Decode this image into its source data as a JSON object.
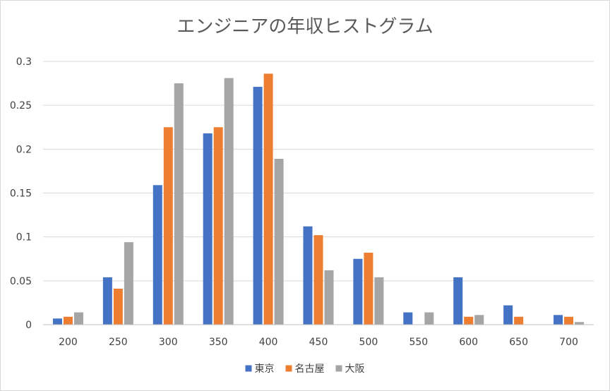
{
  "chart_data": {
    "type": "bar",
    "title": "エンジニアの年収ヒストグラム",
    "xlabel": "",
    "ylabel": "",
    "categories": [
      "200",
      "250",
      "300",
      "350",
      "400",
      "450",
      "500",
      "550",
      "600",
      "650",
      "700"
    ],
    "series": [
      {
        "name": "東京",
        "color": "#4472c4",
        "values": [
          0.007,
          0.054,
          0.159,
          0.218,
          0.271,
          0.112,
          0.075,
          0.014,
          0.054,
          0.022,
          0.011
        ]
      },
      {
        "name": "名古屋",
        "color": "#ed7d31",
        "values": [
          0.009,
          0.041,
          0.225,
          0.225,
          0.286,
          0.102,
          0.082,
          0,
          0.009,
          0.009,
          0.009
        ]
      },
      {
        "name": "大阪",
        "color": "#a5a5a5",
        "values": [
          0.014,
          0.094,
          0.275,
          0.281,
          0.189,
          0.062,
          0.054,
          0.014,
          0.011,
          0,
          0.003
        ]
      }
    ],
    "ylim": [
      0,
      0.3
    ],
    "yticks": [
      0,
      0.05,
      0.1,
      0.15,
      0.2,
      0.25,
      0.3
    ],
    "ytick_labels": [
      "0",
      "0.05",
      "0.1",
      "0.15",
      "0.2",
      "0.25",
      "0.3"
    ],
    "grid": true,
    "legend_position": "bottom"
  }
}
